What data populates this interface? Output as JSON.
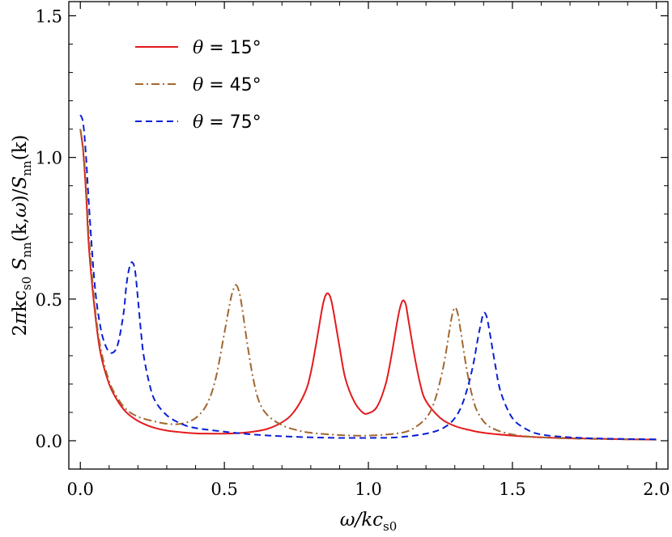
{
  "chart_data": {
    "type": "line",
    "xlabel": "ω/kc",
    "xlabel_sub": "s0",
    "ylabel_text": "2πkc_s0 S_nn(k,ω)/S_nn(k)",
    "xlim": [
      -0.04,
      2.04
    ],
    "ylim": [
      -0.1,
      1.55
    ],
    "x_ticks": [
      0.0,
      0.5,
      1.0,
      1.5,
      2.0
    ],
    "x_tick_labels": [
      "0.0",
      "0.5",
      "1.0",
      "1.5",
      "2.0"
    ],
    "y_ticks": [
      0.0,
      0.5,
      1.0,
      1.5
    ],
    "y_tick_labels": [
      "0.0",
      "0.5",
      "1.0",
      "1.5"
    ],
    "grid": false,
    "legend_position": "top-left",
    "series": [
      {
        "name": "θ = 15°",
        "legend_symbol": "θ",
        "legend_rest": " = 15°",
        "color": "#e41a1c",
        "dash": "solid",
        "x": [
          0.0,
          0.01,
          0.02,
          0.03,
          0.05,
          0.07,
          0.1,
          0.13,
          0.16,
          0.2,
          0.25,
          0.3,
          0.35,
          0.4,
          0.45,
          0.5,
          0.55,
          0.6,
          0.65,
          0.7,
          0.74,
          0.78,
          0.8,
          0.82,
          0.84,
          0.85,
          0.86,
          0.87,
          0.88,
          0.9,
          0.92,
          0.95,
          0.98,
          1.0,
          1.03,
          1.06,
          1.08,
          1.1,
          1.11,
          1.12,
          1.13,
          1.14,
          1.16,
          1.18,
          1.2,
          1.25,
          1.3,
          1.35,
          1.4,
          1.5,
          1.6,
          1.7,
          1.8,
          1.9,
          2.0
        ],
        "y": [
          1.1,
          1.02,
          0.87,
          0.68,
          0.46,
          0.31,
          0.2,
          0.14,
          0.1,
          0.07,
          0.048,
          0.036,
          0.03,
          0.026,
          0.025,
          0.025,
          0.027,
          0.032,
          0.042,
          0.065,
          0.1,
          0.17,
          0.24,
          0.35,
          0.47,
          0.51,
          0.52,
          0.5,
          0.45,
          0.33,
          0.22,
          0.14,
          0.1,
          0.097,
          0.12,
          0.2,
          0.3,
          0.42,
          0.47,
          0.495,
          0.48,
          0.42,
          0.3,
          0.2,
          0.14,
          0.08,
          0.052,
          0.038,
          0.028,
          0.018,
          0.012,
          0.009,
          0.007,
          0.005,
          0.004
        ]
      },
      {
        "name": "θ = 45°",
        "legend_symbol": "θ",
        "legend_rest": " = 45°",
        "color": "#a0672f",
        "dash": "10,4,2,4",
        "x": [
          0.0,
          0.01,
          0.02,
          0.03,
          0.05,
          0.07,
          0.1,
          0.13,
          0.16,
          0.2,
          0.25,
          0.3,
          0.35,
          0.4,
          0.44,
          0.47,
          0.5,
          0.52,
          0.53,
          0.54,
          0.55,
          0.56,
          0.58,
          0.6,
          0.62,
          0.65,
          0.7,
          0.75,
          0.8,
          0.9,
          1.0,
          1.1,
          1.15,
          1.2,
          1.23,
          1.26,
          1.28,
          1.29,
          1.3,
          1.31,
          1.32,
          1.34,
          1.36,
          1.38,
          1.42,
          1.5,
          1.6,
          1.7,
          1.8,
          1.9,
          2.0
        ],
        "y": [
          1.1,
          1.03,
          0.9,
          0.72,
          0.48,
          0.33,
          0.21,
          0.15,
          0.11,
          0.085,
          0.07,
          0.06,
          0.06,
          0.08,
          0.13,
          0.22,
          0.38,
          0.49,
          0.53,
          0.55,
          0.53,
          0.48,
          0.34,
          0.22,
          0.14,
          0.09,
          0.055,
          0.038,
          0.028,
          0.02,
          0.018,
          0.026,
          0.04,
          0.08,
          0.14,
          0.26,
          0.38,
          0.44,
          0.47,
          0.45,
          0.39,
          0.26,
          0.16,
          0.1,
          0.05,
          0.022,
          0.012,
          0.008,
          0.006,
          0.005,
          0.004
        ]
      },
      {
        "name": "θ = 75°",
        "legend_symbol": "θ",
        "legend_rest": " = 75°",
        "color": "#0a1fd6",
        "dash": "8,5",
        "x": [
          0.0,
          0.01,
          0.02,
          0.03,
          0.05,
          0.07,
          0.09,
          0.11,
          0.13,
          0.15,
          0.16,
          0.17,
          0.18,
          0.19,
          0.2,
          0.21,
          0.22,
          0.24,
          0.26,
          0.3,
          0.35,
          0.4,
          0.5,
          0.6,
          0.7,
          0.8,
          0.9,
          1.0,
          1.1,
          1.2,
          1.26,
          1.3,
          1.33,
          1.36,
          1.38,
          1.39,
          1.4,
          1.41,
          1.42,
          1.44,
          1.46,
          1.5,
          1.55,
          1.6,
          1.7,
          1.8,
          1.9,
          2.0
        ],
        "y": [
          1.15,
          1.12,
          1.0,
          0.83,
          0.55,
          0.4,
          0.33,
          0.31,
          0.34,
          0.45,
          0.55,
          0.61,
          0.63,
          0.6,
          0.5,
          0.39,
          0.3,
          0.2,
          0.14,
          0.09,
          0.06,
          0.045,
          0.032,
          0.022,
          0.016,
          0.012,
          0.01,
          0.01,
          0.012,
          0.025,
          0.045,
          0.08,
          0.14,
          0.25,
          0.36,
          0.41,
          0.45,
          0.44,
          0.39,
          0.27,
          0.17,
          0.08,
          0.04,
          0.022,
          0.012,
          0.008,
          0.006,
          0.005
        ]
      }
    ]
  }
}
